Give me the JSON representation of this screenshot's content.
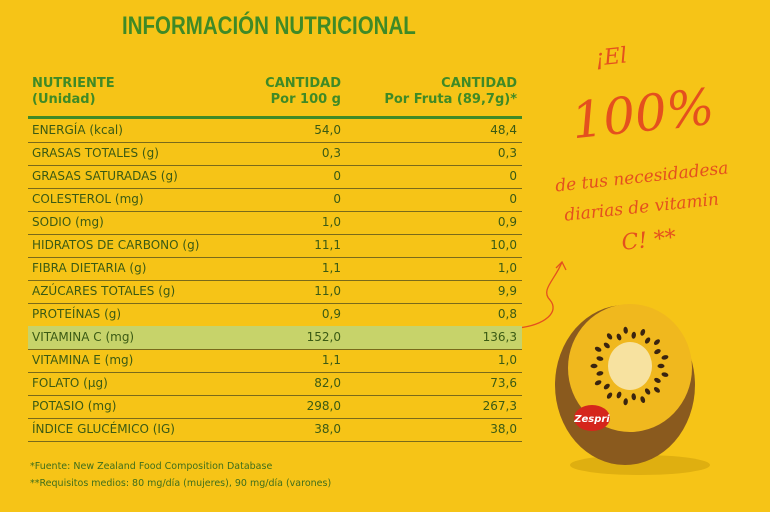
{
  "header": {
    "title": "INFORMACIÓN NUTRICIONAL"
  },
  "table": {
    "columns": [
      [
        "NUTRIENTE",
        "(Unidad)"
      ],
      [
        "CANTIDAD",
        "Por 100 g"
      ],
      [
        "CANTIDAD",
        "Por Fruta (89,7g)*"
      ]
    ],
    "highlight_row": 9,
    "rows": [
      [
        "ENERGÍA (kcal)",
        "54,0",
        "48,4"
      ],
      [
        "GRASAS TOTALES (g)",
        "0,3",
        "0,3"
      ],
      [
        "GRASAS SATURADAS (g)",
        "0",
        "0"
      ],
      [
        "COLESTEROL (mg)",
        "0",
        "0"
      ],
      [
        "SODIO (mg)",
        "1,0",
        "0,9"
      ],
      [
        "HIDRATOS DE CARBONO (g)",
        "11,1",
        "10,0"
      ],
      [
        "FIBRA DIETARIA (g)",
        "1,1",
        "1,0"
      ],
      [
        "AZÚCARES TOTALES (g)",
        "11,0",
        "9,9"
      ],
      [
        "PROTEÍNAS (g)",
        "0,9",
        "0,8"
      ],
      [
        "VITAMINA C (mg)",
        "152,0",
        "136,3"
      ],
      [
        "VITAMINA E (mg)",
        "1,1",
        "1,0"
      ],
      [
        "FOLATO (µg)",
        "82,0",
        "73,6"
      ],
      [
        "POTASIO (mg)",
        "298,0",
        "267,3"
      ],
      [
        "ÍNDICE GLUCÉMICO (IG)",
        "38,0",
        "38,0"
      ]
    ]
  },
  "footnotes": [
    "*Fuente: New Zealand Food Composition Database",
    "**Requisitos medios: 80 mg/día (mujeres), 90 mg/día (varones)"
  ],
  "callout": {
    "lines": [
      "¡El",
      "100%",
      "de tus necesidadesa",
      "diarias de vitamin",
      "C! **"
    ]
  },
  "brand": "Zespri"
}
